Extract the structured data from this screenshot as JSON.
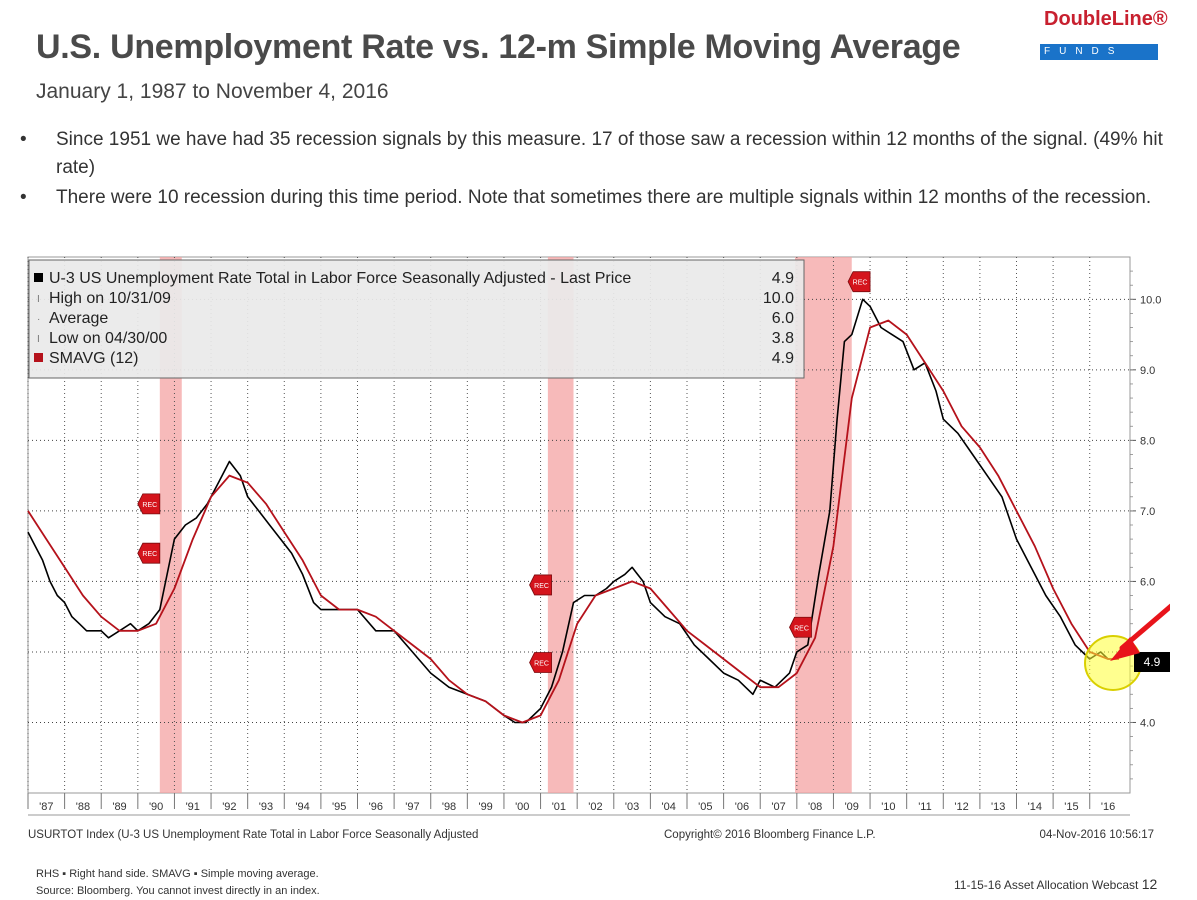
{
  "header": {
    "title": "U.S. Unemployment Rate vs. 12-m Simple Moving Average",
    "subtitle": "January 1, 1987 to November 4, 2016",
    "logo_text": "DoubleLine®",
    "logo_subtext": "FUNDS"
  },
  "bullets": [
    "Since 1951 we have had 35 recession signals by this measure. 17 of those saw a recession within 12 months of the signal. (49% hit rate)",
    "There were 10 recession during this time period. Note that sometimes there are multiple signals within 12 months of the recession."
  ],
  "chart_data": {
    "type": "line",
    "legend": [
      {
        "label": "U-3 US Unemployment Rate Total in Labor Force Seasonally Adjusted - Last Price",
        "value": "4.9",
        "color": "#000000"
      },
      {
        "label": "High on 10/31/09",
        "value": "10.0"
      },
      {
        "label": "Average",
        "value": "6.0"
      },
      {
        "label": "Low on 04/30/00",
        "value": "3.8"
      },
      {
        "label": "SMAVG (12)",
        "value": "4.9",
        "color": "#b5121b"
      }
    ],
    "legend_position": "top-left",
    "x_tick_labels": [
      "'87",
      "'88",
      "'89",
      "'90",
      "'91",
      "'92",
      "'93",
      "'94",
      "'95",
      "'96",
      "'97",
      "'98",
      "'99",
      "'00",
      "'01",
      "'02",
      "'03",
      "'04",
      "'05",
      "'06",
      "'07",
      "'08",
      "'09",
      "'10",
      "'11",
      "'12",
      "'13",
      "'14",
      "'15",
      "'16"
    ],
    "y_tick_labels": [
      "10.0",
      "9.0",
      "8.0",
      "7.0",
      "6.0",
      "4.0"
    ],
    "y_ticks": [
      10,
      9,
      8,
      7,
      6,
      4
    ],
    "ylim": [
      3.0,
      10.6
    ],
    "xlim": [
      1987,
      2017.1
    ],
    "y_axis_side": "right",
    "grid": true,
    "last_value_label": "4.9",
    "recession_periods": [
      [
        1990.6,
        1991.2
      ],
      [
        2001.2,
        2001.9
      ],
      [
        2007.95,
        2009.5
      ]
    ],
    "rec_markers": [
      {
        "x": 1990.3,
        "y": 7.1,
        "label": "REC"
      },
      {
        "x": 1990.3,
        "y": 6.4,
        "label": "REC"
      },
      {
        "x": 2001.0,
        "y": 5.95,
        "label": "REC"
      },
      {
        "x": 2001.0,
        "y": 4.85,
        "label": "REC"
      },
      {
        "x": 2008.1,
        "y": 5.35,
        "label": "REC"
      },
      {
        "x": 2009.7,
        "y": 10.25,
        "label": "REC"
      }
    ],
    "series": [
      {
        "name": "U-3 US Unemployment Rate Total in Labor Force Seasonally Adjusted",
        "color": "#000000",
        "x": [
          1987.0,
          1987.2,
          1987.4,
          1987.6,
          1987.8,
          1988.0,
          1988.2,
          1988.4,
          1988.6,
          1988.8,
          1989.0,
          1989.2,
          1989.5,
          1989.8,
          1990.0,
          1990.3,
          1990.6,
          1990.8,
          1991.0,
          1991.3,
          1991.6,
          1991.9,
          1992.2,
          1992.5,
          1992.8,
          1993.0,
          1993.3,
          1993.6,
          1993.9,
          1994.2,
          1994.5,
          1994.8,
          1995.0,
          1995.5,
          1996.0,
          1996.5,
          1997.0,
          1997.5,
          1998.0,
          1998.5,
          1999.0,
          1999.5,
          2000.0,
          2000.3,
          2000.6,
          2001.0,
          2001.3,
          2001.6,
          2001.9,
          2002.2,
          2002.5,
          2002.8,
          2003.0,
          2003.3,
          2003.5,
          2003.8,
          2004.0,
          2004.4,
          2004.8,
          2005.2,
          2005.6,
          2006.0,
          2006.4,
          2006.8,
          2007.0,
          2007.4,
          2007.8,
          2008.0,
          2008.3,
          2008.6,
          2008.9,
          2009.1,
          2009.3,
          2009.5,
          2009.8,
          2010.0,
          2010.3,
          2010.6,
          2010.9,
          2011.2,
          2011.5,
          2011.8,
          2012.0,
          2012.4,
          2012.8,
          2013.2,
          2013.6,
          2014.0,
          2014.4,
          2014.8,
          2015.2,
          2015.6,
          2016.0,
          2016.3,
          2016.5,
          2016.8
        ],
        "y": [
          6.7,
          6.5,
          6.3,
          6.0,
          5.8,
          5.7,
          5.5,
          5.4,
          5.3,
          5.3,
          5.3,
          5.2,
          5.3,
          5.4,
          5.3,
          5.4,
          5.6,
          6.1,
          6.6,
          6.8,
          6.9,
          7.1,
          7.4,
          7.7,
          7.5,
          7.2,
          7.0,
          6.8,
          6.6,
          6.4,
          6.1,
          5.7,
          5.6,
          5.6,
          5.6,
          5.3,
          5.3,
          5.0,
          4.7,
          4.5,
          4.4,
          4.3,
          4.1,
          4.0,
          4.0,
          4.2,
          4.5,
          5.0,
          5.7,
          5.8,
          5.8,
          5.9,
          6.0,
          6.1,
          6.2,
          6.0,
          5.7,
          5.5,
          5.4,
          5.1,
          4.9,
          4.7,
          4.6,
          4.4,
          4.6,
          4.5,
          4.7,
          5.0,
          5.1,
          6.1,
          7.0,
          8.3,
          9.4,
          9.5,
          10.0,
          9.9,
          9.6,
          9.5,
          9.4,
          9.0,
          9.1,
          8.7,
          8.3,
          8.1,
          7.8,
          7.5,
          7.2,
          6.6,
          6.2,
          5.8,
          5.5,
          5.1,
          4.9,
          5.0,
          4.9,
          4.9
        ]
      },
      {
        "name": "SMAVG (12)",
        "color": "#b5121b",
        "x": [
          1987.0,
          1987.5,
          1988.0,
          1988.5,
          1989.0,
          1989.5,
          1990.0,
          1990.5,
          1991.0,
          1991.5,
          1992.0,
          1992.5,
          1993.0,
          1993.5,
          1994.0,
          1994.5,
          1995.0,
          1995.5,
          1996.0,
          1996.5,
          1997.0,
          1997.5,
          1998.0,
          1998.5,
          1999.0,
          1999.5,
          2000.0,
          2000.5,
          2001.0,
          2001.5,
          2002.0,
          2002.5,
          2003.0,
          2003.5,
          2004.0,
          2004.5,
          2005.0,
          2005.5,
          2006.0,
          2006.5,
          2007.0,
          2007.5,
          2008.0,
          2008.5,
          2009.0,
          2009.5,
          2010.0,
          2010.5,
          2011.0,
          2011.5,
          2012.0,
          2012.5,
          2013.0,
          2013.5,
          2014.0,
          2014.5,
          2015.0,
          2015.5,
          2016.0,
          2016.5,
          2016.8
        ],
        "y": [
          7.0,
          6.6,
          6.2,
          5.8,
          5.5,
          5.3,
          5.3,
          5.4,
          5.9,
          6.6,
          7.2,
          7.5,
          7.4,
          7.1,
          6.7,
          6.3,
          5.8,
          5.6,
          5.6,
          5.5,
          5.3,
          5.1,
          4.9,
          4.6,
          4.4,
          4.3,
          4.1,
          4.0,
          4.1,
          4.6,
          5.4,
          5.8,
          5.9,
          6.0,
          5.9,
          5.6,
          5.3,
          5.1,
          4.9,
          4.7,
          4.5,
          4.5,
          4.7,
          5.2,
          6.5,
          8.6,
          9.6,
          9.7,
          9.5,
          9.1,
          8.7,
          8.2,
          7.9,
          7.5,
          7.0,
          6.5,
          5.9,
          5.4,
          5.0,
          4.9,
          4.9
        ]
      }
    ],
    "source_line_left": "USURTOT Index (U-3 US Unemployment Rate Total in Labor Force Seasonally Adjusted",
    "source_line_mid": "Copyright© 2016 Bloomberg Finance L.P.",
    "source_line_right": "04-Nov-2016 10:56:17",
    "highlight_color": "#ffff33",
    "arrow_color": "#e8141b"
  },
  "footer": {
    "note1": "RHS ▪ Right hand side. SMAVG ▪ Simple moving average.",
    "note2": "Source: Bloomberg. You cannot invest directly in an index.",
    "webcast": "11-15-16 Asset Allocation Webcast",
    "page": "12"
  }
}
